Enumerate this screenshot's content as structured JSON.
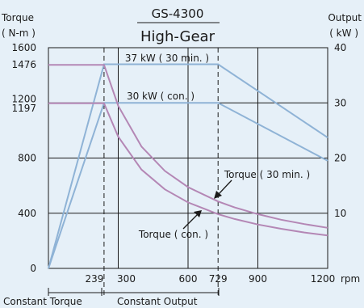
{
  "chart_data": {
    "type": "line",
    "title": "GS-4300",
    "subtitle": "High-Gear",
    "left_axis": {
      "label_line1": "Torque",
      "label_line2": "( N-m )",
      "ticks": [
        0,
        400,
        800,
        1197,
        1200,
        1476,
        1600
      ],
      "range": [
        0,
        1600
      ]
    },
    "right_axis": {
      "label_line1": "Output",
      "label_line2": "( kW )",
      "ticks": [
        10,
        20,
        30,
        40
      ],
      "range": [
        0,
        40
      ]
    },
    "x_axis": {
      "unit": "rpm",
      "ticks": [
        0,
        239,
        300,
        600,
        729,
        900,
        1200
      ],
      "range": [
        0,
        1200
      ]
    },
    "grid": true,
    "series": [
      {
        "name": "37 kW ( 30 min. )",
        "axis": "right",
        "color": "#8fb3d6",
        "x": [
          0,
          239,
          729,
          1200
        ],
        "y": [
          0,
          37,
          37,
          23.7
        ]
      },
      {
        "name": "30 kW ( con. )",
        "axis": "right",
        "color": "#8fb3d6",
        "x": [
          0,
          239,
          729,
          1200
        ],
        "y": [
          0,
          30,
          30,
          19.5
        ]
      },
      {
        "name": "Torque ( 30 min. )",
        "axis": "left",
        "color": "#b487b5",
        "x": [
          0,
          239,
          300,
          400,
          500,
          600,
          729,
          800,
          900,
          1000,
          1100,
          1200
        ],
        "y": [
          1476,
          1476,
          1178,
          883,
          707,
          589,
          485,
          442,
          393,
          353,
          321,
          294
        ]
      },
      {
        "name": "Torque ( con. )",
        "axis": "left",
        "color": "#b487b5",
        "x": [
          0,
          239,
          300,
          400,
          500,
          600,
          729,
          800,
          900,
          1000,
          1100,
          1200
        ],
        "y": [
          1197,
          1197,
          955,
          716,
          573,
          478,
          393,
          358,
          318,
          287,
          260,
          239
        ]
      }
    ],
    "annotations": {
      "kw30min": "37 kW ( 30 min. )",
      "kwcon": "30 kW ( con. )",
      "torque30min": "Torque ( 30 min. )",
      "torquecon": "Torque ( con. )"
    },
    "regions": {
      "constant_torque": "Constant Torque",
      "constant_output": "Constant Output"
    }
  }
}
